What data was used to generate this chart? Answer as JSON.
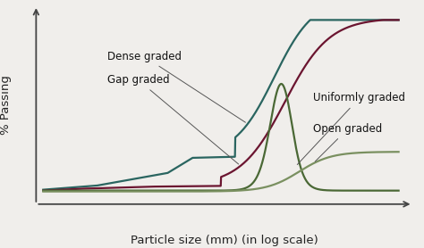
{
  "background_color": "#f0eeeb",
  "axes_background": "#f0eeeb",
  "xlabel": "Particle size (mm) (in log scale)",
  "ylabel": "% Passing",
  "xlabel_fontsize": 9.5,
  "ylabel_fontsize": 9.5,
  "annotation_fontsize": 8.5,
  "curves": {
    "dense_graded": {
      "color": "#2a6560",
      "label": "Dense graded",
      "linewidth": 1.6
    },
    "gap_graded": {
      "color": "#6b1530",
      "label": "Gap graded",
      "linewidth": 1.6
    },
    "uniformly_graded": {
      "color": "#4a6835",
      "label": "Uniformly graded",
      "linewidth": 1.6
    },
    "open_graded": {
      "color": "#7a9060",
      "label": "Open graded",
      "linewidth": 1.6
    }
  }
}
